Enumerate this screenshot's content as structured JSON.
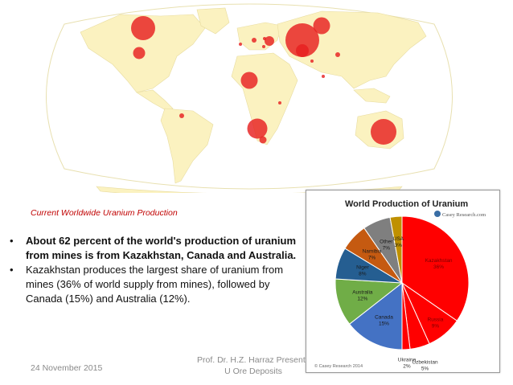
{
  "caption": "Current Worldwide Uranium Production",
  "bullets": [
    {
      "text": "About 62 percent of the world's production of uranium from mines is from Kazakhstan,  Canada and Australia.",
      "bold": true
    },
    {
      "text": "Kazakhstan produces the largest share of uranium from mines (36% of world supply from mines), followed by Canada (15%) and Australia (12%).",
      "bold": false
    }
  ],
  "footer": {
    "date": "24 November 2015",
    "author_line1": "Prof. Dr. H.Z. Harraz Presentati",
    "author_line2": "U Ore Deposits"
  },
  "chart_data": {
    "type": "pie",
    "title": "World Production of Uranium",
    "brand": "Casey Research.com",
    "copyright": "© Casey Research 2014",
    "slices": [
      {
        "name": "Kazakhstan",
        "value": 36,
        "label": "36%",
        "color": "#ff0000"
      },
      {
        "name": "Russia",
        "value": 9,
        "label": "9%",
        "color": "#ff0000"
      },
      {
        "name": "Uzbekistan",
        "value": 5,
        "label": "5%",
        "color": "#ff0000"
      },
      {
        "name": "Ukraine",
        "value": 2,
        "label": "2%",
        "color": "#ff0000"
      },
      {
        "name": "Canada",
        "value": 15,
        "label": "15%",
        "color": "#4472c4"
      },
      {
        "name": "Australia",
        "value": 12,
        "label": "12%",
        "color": "#70ad47"
      },
      {
        "name": "Niger",
        "value": 8,
        "label": "8%",
        "color": "#255e91"
      },
      {
        "name": "Namibia",
        "value": 7,
        "label": "7%",
        "color": "#c55a11"
      },
      {
        "name": "Other",
        "value": 7,
        "label": "7%",
        "color": "#7f7f7f"
      },
      {
        "name": "USA",
        "value": 3,
        "label": "3%",
        "color": "#bf9000"
      }
    ]
  },
  "map": {
    "land_color": "#fbf2c0",
    "ocean_color": "#ffffff",
    "bubble_color": "#e62020"
  }
}
